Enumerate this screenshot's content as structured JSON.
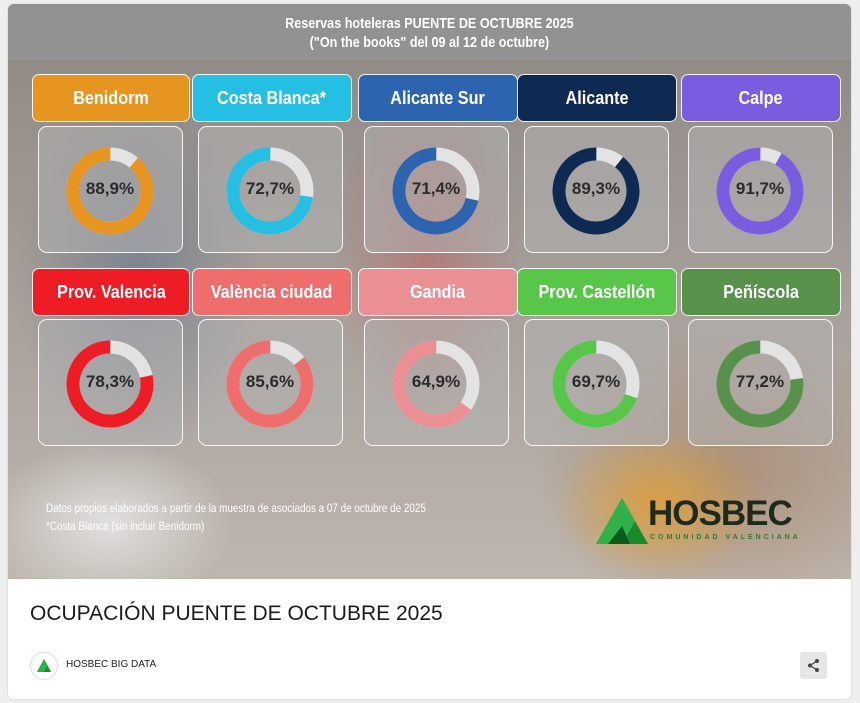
{
  "header": {
    "title_line1": "Reservas hoteleras PUENTE DE OCTUBRE 2025",
    "title_line2": "(\"On the books\" del 09 al 12 de octubre)"
  },
  "chart_data": {
    "type": "donut",
    "unit": "%",
    "items": [
      {
        "name": "Benidorm",
        "value": 88.9,
        "label": "88,9%",
        "color": "#e69520"
      },
      {
        "name": "Costa Blanca*",
        "value": 72.7,
        "label": "72,7%",
        "color": "#24bfe3"
      },
      {
        "name": "Alicante Sur",
        "value": 71.4,
        "label": "71,4%",
        "color": "#2c64b0"
      },
      {
        "name": "Alicante",
        "value": 89.3,
        "label": "89,3%",
        "color": "#0f2a52"
      },
      {
        "name": "Calpe",
        "value": 91.7,
        "label": "91,7%",
        "color": "#7a5ce0"
      },
      {
        "name": "Prov. Valencia",
        "value": 78.3,
        "label": "78,3%",
        "color": "#ee1c24"
      },
      {
        "name": "València ciudad",
        "value": 85.6,
        "label": "85,6%",
        "color": "#ee6e6e"
      },
      {
        "name": "Gandia",
        "value": 64.9,
        "label": "64,9%",
        "color": "#ea8f94"
      },
      {
        "name": "Prov. Castellón",
        "value": 69.7,
        "label": "69,7%",
        "color": "#58c648"
      },
      {
        "name": "Peñíscola",
        "value": 77.2,
        "label": "77,2%",
        "color": "#58914a"
      }
    ],
    "remainder_color": "#e3e3e3"
  },
  "notes": {
    "line1": "Datos propios elaborados a partir de la muestra de asociados a 07 de octubre de 2025",
    "line2": "*Costa Blanca (sin incluir Benidorm)"
  },
  "logo": {
    "text": "HOSBEC",
    "subtitle": "COMUNIDAD VALENCIANA",
    "icon": "green-mountain-logo-icon"
  },
  "post": {
    "title": "OCUPACIÓN PUENTE DE OCTUBRE 2025",
    "author": "HOSBEC BIG DATA",
    "author_avatar_icon": "hosbec-avatar-icon",
    "share_icon": "share-icon"
  }
}
